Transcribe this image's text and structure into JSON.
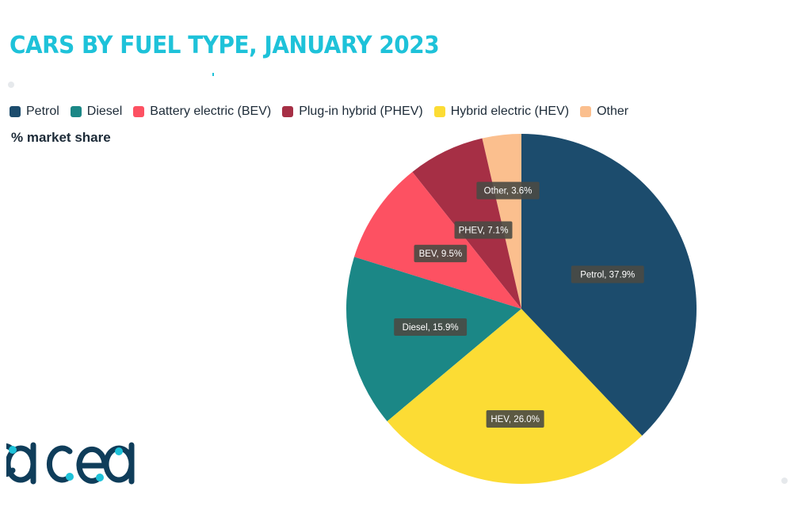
{
  "title": "CARS BY FUEL TYPE, JANUARY 2023",
  "subtitle": "% market share",
  "logo_text": "acea",
  "colors": {
    "title": "#1ec2d9",
    "logo": "#0f3d5a",
    "logo_dots": "#1ec2d9"
  },
  "chart_data": {
    "type": "pie",
    "title": "CARS BY FUEL TYPE, JANUARY 2023",
    "subtitle": "% market share",
    "legend_position": "top-left",
    "slices": [
      {
        "name": "Other",
        "label": "Other, 3.6%",
        "legend": "Other",
        "value": 3.6,
        "color": "#fbbf8e"
      },
      {
        "name": "Plug-in hybrid (PHEV)",
        "label": "PHEV, 7.1%",
        "legend": "Plug-in hybrid (PHEV)",
        "value": 7.1,
        "color": "#a62f45"
      },
      {
        "name": "Battery electric (BEV)",
        "label": "BEV, 9.5%",
        "legend": "Battery electric (BEV)",
        "value": 9.5,
        "color": "#fd5162"
      },
      {
        "name": "Diesel",
        "label": "Diesel, 15.9%",
        "legend": "Diesel",
        "value": 15.9,
        "color": "#1b8786"
      },
      {
        "name": "Hybrid electric (HEV)",
        "label": "HEV, 26.0%",
        "legend": "Hybrid electric (HEV)",
        "value": 26.0,
        "color": "#fcdc34"
      },
      {
        "name": "Petrol",
        "label": "Petrol, 37.9%",
        "legend": "Petrol",
        "value": 37.9,
        "color": "#1c4c6d"
      }
    ],
    "legend_order": [
      "Petrol",
      "Diesel",
      "Battery electric (BEV)",
      "Plug-in hybrid (PHEV)",
      "Hybrid electric (HEV)",
      "Other"
    ]
  }
}
